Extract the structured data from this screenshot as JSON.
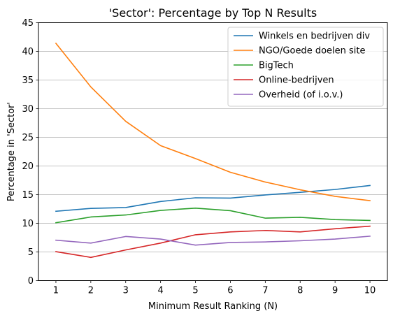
{
  "chart_data": {
    "type": "line",
    "title": "'Sector': Percentage by Top N Results",
    "xlabel": "Minimum Result Ranking (N)",
    "ylabel": "Percentage in 'Sector'",
    "x": [
      1,
      2,
      3,
      4,
      5,
      6,
      7,
      8,
      9,
      10
    ],
    "xlim": [
      0.5,
      10.5
    ],
    "ylim": [
      0,
      45
    ],
    "yticks": [
      0,
      5,
      10,
      15,
      20,
      25,
      30,
      35,
      40,
      45
    ],
    "grid": "horizontal",
    "legend_position": "top-right",
    "series": [
      {
        "name": "Winkels en bedrijven div",
        "color": "#1f77b4",
        "values": [
          12.1,
          12.6,
          12.75,
          13.8,
          14.45,
          14.4,
          14.95,
          15.4,
          15.9,
          16.6
        ]
      },
      {
        "name": "NGO/Goede doelen site",
        "color": "#ff7f0e",
        "values": [
          41.4,
          33.8,
          27.8,
          23.55,
          21.3,
          18.9,
          17.2,
          15.85,
          14.7,
          13.95
        ]
      },
      {
        "name": "BigTech",
        "color": "#2ca02c",
        "values": [
          10.1,
          11.1,
          11.45,
          12.25,
          12.65,
          12.2,
          10.9,
          11.05,
          10.65,
          10.5
        ]
      },
      {
        "name": "Online-bedrijven",
        "color": "#d62728",
        "values": [
          5.05,
          4.05,
          5.35,
          6.55,
          8.0,
          8.5,
          8.75,
          8.5,
          9.05,
          9.5
        ]
      },
      {
        "name": "Overheid (of i.o.v.)",
        "color": "#9467bd",
        "values": [
          7.05,
          6.55,
          7.7,
          7.25,
          6.2,
          6.65,
          6.75,
          6.95,
          7.25,
          7.75
        ]
      }
    ]
  }
}
